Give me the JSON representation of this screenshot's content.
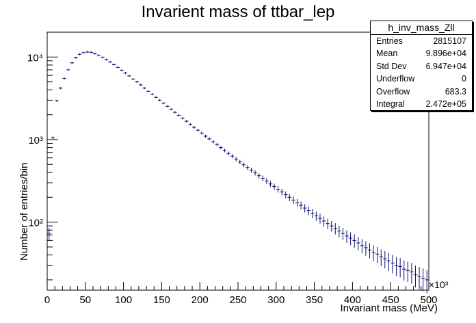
{
  "chart_data": {
    "type": "histogram",
    "title": "Invarient mass of ttbar_lep",
    "xlabel": "Invariant mass (MeV)",
    "ylabel": "Number of entries/bin",
    "x_exponent": "×10³",
    "xlim": [
      0,
      500
    ],
    "ylim_log": [
      15,
      20000
    ],
    "log_y": true,
    "grid": false,
    "x_ticks": [
      "0",
      "50",
      "100",
      "150",
      "200",
      "250",
      "300",
      "350",
      "400",
      "450",
      "500"
    ],
    "y_ticks": [
      "10²",
      "10³",
      "10⁴"
    ],
    "bin_width": 5,
    "x": [
      2.5,
      7.5,
      12.5,
      17.5,
      22.5,
      27.5,
      32.5,
      37.5,
      42.5,
      47.5,
      52.5,
      57.5,
      62.5,
      67.5,
      72.5,
      77.5,
      82.5,
      87.5,
      92.5,
      97.5,
      102.5,
      107.5,
      112.5,
      117.5,
      122.5,
      127.5,
      132.5,
      137.5,
      142.5,
      147.5,
      152.5,
      157.5,
      162.5,
      167.5,
      172.5,
      177.5,
      182.5,
      187.5,
      192.5,
      197.5,
      202.5,
      207.5,
      212.5,
      217.5,
      222.5,
      227.5,
      232.5,
      237.5,
      242.5,
      247.5,
      252.5,
      257.5,
      262.5,
      267.5,
      272.5,
      277.5,
      282.5,
      287.5,
      292.5,
      297.5,
      302.5,
      307.5,
      312.5,
      317.5,
      322.5,
      327.5,
      332.5,
      337.5,
      342.5,
      347.5,
      352.5,
      357.5,
      362.5,
      367.5,
      372.5,
      377.5,
      382.5,
      387.5,
      392.5,
      397.5,
      402.5,
      407.5,
      412.5,
      417.5,
      422.5,
      427.5,
      432.5,
      437.5,
      442.5,
      447.5,
      452.5,
      457.5,
      462.5,
      467.5,
      472.5,
      477.5,
      482.5,
      487.5,
      492.5,
      497.5
    ],
    "values": [
      73,
      1050,
      2950,
      4200,
      5500,
      7000,
      8500,
      9800,
      10800,
      11300,
      11500,
      11400,
      11000,
      10500,
      9900,
      9300,
      8700,
      8100,
      7500,
      6900,
      6400,
      5900,
      5400,
      5000,
      4600,
      4200,
      3850,
      3550,
      3250,
      3000,
      2760,
      2530,
      2330,
      2140,
      1970,
      1810,
      1670,
      1530,
      1410,
      1300,
      1200,
      1100,
      1020,
      940,
      870,
      800,
      740,
      680,
      630,
      580,
      535,
      495,
      460,
      425,
      395,
      365,
      340,
      315,
      290,
      270,
      250,
      232,
      215,
      200,
      185,
      172,
      160,
      148,
      138,
      128,
      119,
      111,
      103,
      96,
      90,
      84,
      78,
      73,
      68,
      64,
      60,
      56,
      52,
      49,
      46,
      43,
      41,
      38,
      36,
      34,
      32,
      30,
      29,
      27,
      26,
      25,
      23,
      22,
      21,
      20
    ]
  },
  "stats": {
    "name": "h_inv_mass_Zll",
    "rows": [
      {
        "label": "Entries",
        "value": "2815107"
      },
      {
        "label": "Mean",
        "value": "9.896e+04"
      },
      {
        "label": "Std Dev",
        "value": "6.947e+04"
      },
      {
        "label": "Underflow",
        "value": "0"
      },
      {
        "label": "Overflow",
        "value": "683.3"
      },
      {
        "label": "Integral",
        "value": "2.472e+05"
      }
    ]
  },
  "colors": {
    "marker": "#0a0a6e",
    "axis": "#000000"
  }
}
